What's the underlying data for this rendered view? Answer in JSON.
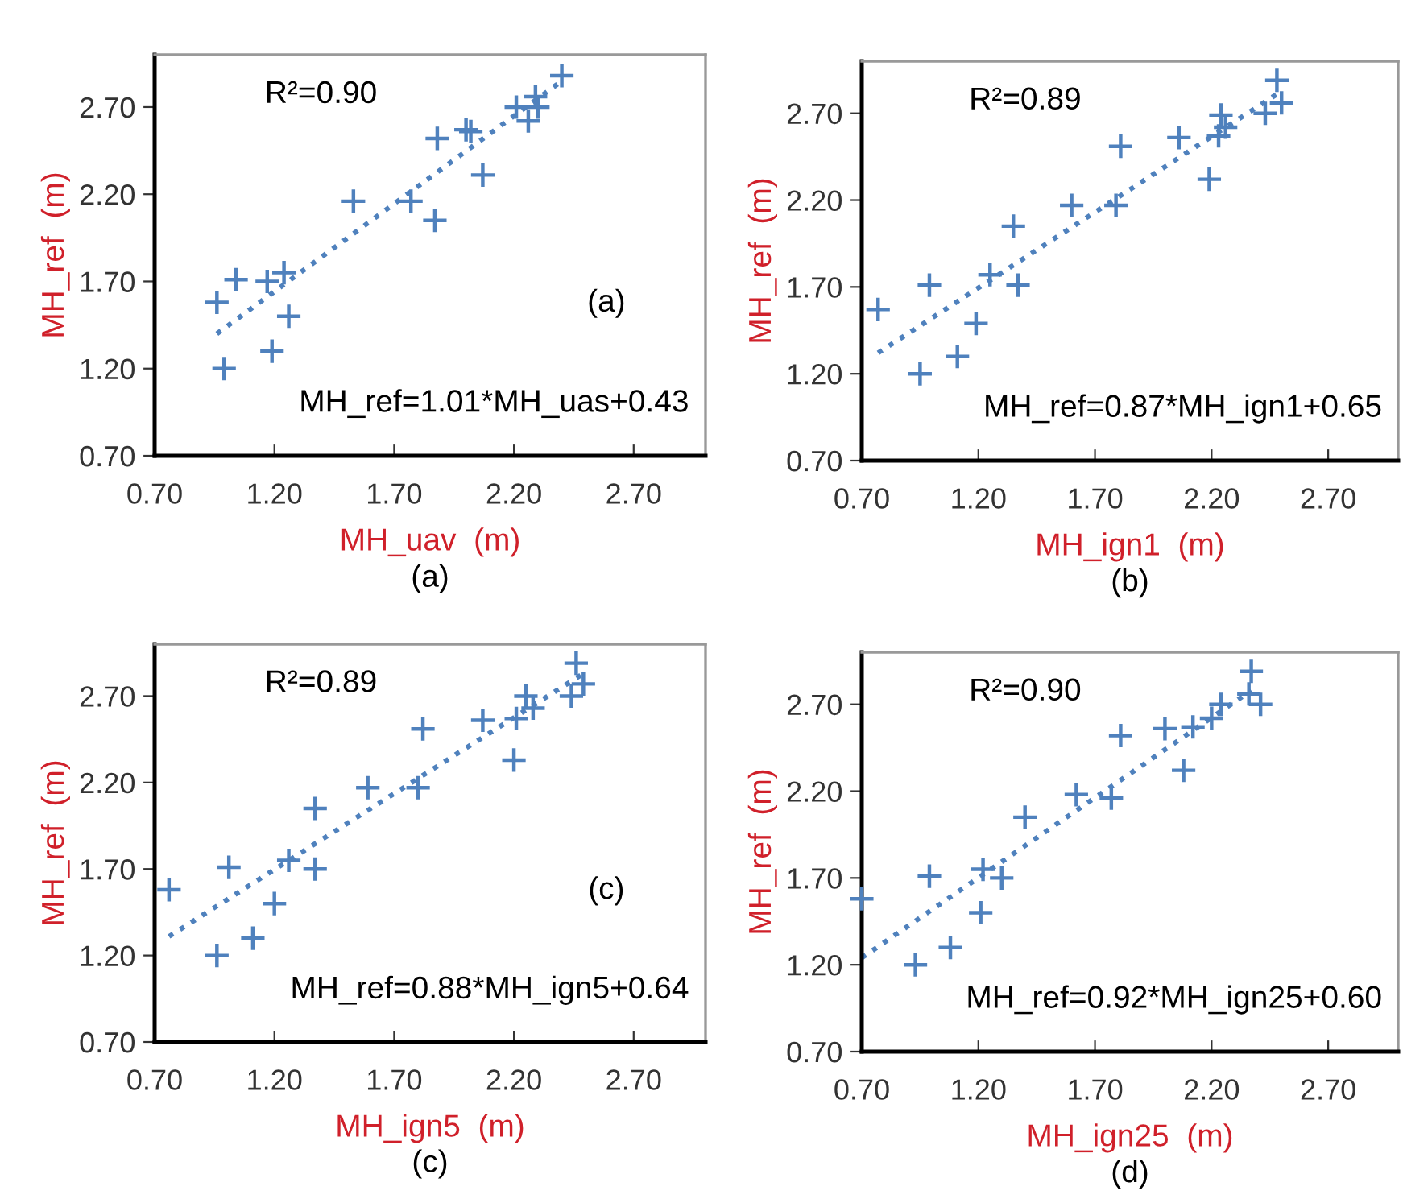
{
  "chart_data": [
    {
      "type": "scatter",
      "xlabel": "MH_uav  (m)",
      "ylabel": "MH_ref  (m)",
      "xlim": [
        0.7,
        3.0
      ],
      "ylim": [
        0.7,
        3.0
      ],
      "xticks": [
        {
          "value": 0.7,
          "label": "0.70"
        },
        {
          "value": 1.2,
          "label": "1.20"
        },
        {
          "value": 1.7,
          "label": "1.70"
        },
        {
          "value": 2.2,
          "label": "2.20"
        },
        {
          "value": 2.7,
          "label": "2.70"
        }
      ],
      "yticks": [
        {
          "value": 0.7,
          "label": "0.70"
        },
        {
          "value": 1.2,
          "label": "1.20"
        },
        {
          "value": 1.7,
          "label": "1.70"
        },
        {
          "value": 2.2,
          "label": "2.20"
        },
        {
          "value": 2.7,
          "label": "2.70"
        }
      ],
      "grid": false,
      "annotations": [
        "R²=0.90",
        "(a)",
        "MH_ref=1.01*MH_uas+0.43",
        "(a)"
      ],
      "series": [
        {
          "marker": "cross",
          "color": "#4f81bd",
          "x": [
            2.4,
            2.29,
            2.3,
            2.21,
            2.26,
            2.0,
            2.02,
            1.88,
            2.07,
            1.53,
            1.77,
            1.87,
            1.04,
            1.17,
            1.24,
            0.96,
            1.26,
            1.19,
            0.99
          ],
          "values": [
            2.88,
            2.76,
            2.7,
            2.7,
            2.62,
            2.57,
            2.56,
            2.52,
            2.31,
            2.16,
            2.16,
            2.05,
            1.71,
            1.7,
            1.75,
            1.58,
            1.5,
            1.3,
            1.2
          ]
        },
        {
          "type": "line",
          "color": "#4f81bd",
          "line_style": "dotted",
          "x": [
            0.96,
            2.4
          ],
          "values": [
            1.4,
            2.85
          ]
        }
      ]
    },
    {
      "type": "scatter",
      "xlabel": "MH_ign1  (m)",
      "ylabel": "MH_ref  (m)",
      "xlim": [
        0.7,
        3.0
      ],
      "ylim": [
        0.7,
        3.0
      ],
      "xticks": [
        {
          "value": 0.7,
          "label": "0.70"
        },
        {
          "value": 1.2,
          "label": "1.20"
        },
        {
          "value": 1.7,
          "label": "1.70"
        },
        {
          "value": 2.2,
          "label": "2.20"
        },
        {
          "value": 2.7,
          "label": "2.70"
        }
      ],
      "yticks": [
        {
          "value": 0.7,
          "label": "0.70"
        },
        {
          "value": 1.2,
          "label": "1.20"
        },
        {
          "value": 1.7,
          "label": "1.70"
        },
        {
          "value": 2.2,
          "label": "2.20"
        },
        {
          "value": 2.7,
          "label": "2.70"
        }
      ],
      "grid": false,
      "annotations": [
        "R²=0.89",
        "MH_ref=0.87*MH_ign1+0.65",
        "(b)"
      ],
      "series": [
        {
          "marker": "cross",
          "color": "#4f81bd",
          "x": [
            2.48,
            2.5,
            2.43,
            2.24,
            2.26,
            2.23,
            2.06,
            1.81,
            2.19,
            1.6,
            1.79,
            1.35,
            1.25,
            1.37,
            0.99,
            0.77,
            1.19,
            1.11,
            0.95
          ],
          "values": [
            2.89,
            2.76,
            2.7,
            2.69,
            2.62,
            2.57,
            2.56,
            2.51,
            2.32,
            2.17,
            2.17,
            2.05,
            1.77,
            1.71,
            1.71,
            1.57,
            1.49,
            1.3,
            1.2
          ]
        },
        {
          "type": "line",
          "color": "#4f81bd",
          "line_style": "dotted",
          "x": [
            0.77,
            2.48
          ],
          "values": [
            1.32,
            2.81
          ]
        }
      ]
    },
    {
      "type": "scatter",
      "xlabel": "MH_ign5  (m)",
      "ylabel": "MH_ref  (m)",
      "xlim": [
        0.7,
        3.0
      ],
      "ylim": [
        0.7,
        3.0
      ],
      "xticks": [
        {
          "value": 0.7,
          "label": "0.70"
        },
        {
          "value": 1.2,
          "label": "1.20"
        },
        {
          "value": 1.7,
          "label": "1.70"
        },
        {
          "value": 2.2,
          "label": "2.20"
        },
        {
          "value": 2.7,
          "label": "2.70"
        }
      ],
      "yticks": [
        {
          "value": 0.7,
          "label": "0.70"
        },
        {
          "value": 1.2,
          "label": "1.20"
        },
        {
          "value": 1.7,
          "label": "1.70"
        },
        {
          "value": 2.2,
          "label": "2.20"
        },
        {
          "value": 2.7,
          "label": "2.70"
        }
      ],
      "grid": false,
      "annotations": [
        "R²=0.89",
        "(c)",
        "MH_ref=0.88*MH_ign5+0.64",
        "(c)"
      ],
      "series": [
        {
          "marker": "cross",
          "color": "#4f81bd",
          "x": [
            2.46,
            2.49,
            2.44,
            2.25,
            2.28,
            2.21,
            2.07,
            1.82,
            2.2,
            1.59,
            1.8,
            1.37,
            1.26,
            1.37,
            1.01,
            0.76,
            1.2,
            1.11,
            0.96
          ],
          "values": [
            2.89,
            2.77,
            2.7,
            2.7,
            2.63,
            2.57,
            2.56,
            2.51,
            2.33,
            2.17,
            2.17,
            2.05,
            1.75,
            1.7,
            1.71,
            1.58,
            1.5,
            1.3,
            1.2
          ]
        },
        {
          "type": "line",
          "color": "#4f81bd",
          "line_style": "dotted",
          "x": [
            0.76,
            2.49
          ],
          "values": [
            1.31,
            2.83
          ]
        }
      ]
    },
    {
      "type": "scatter",
      "xlabel": "MH_ign25  (m)",
      "ylabel": "MH_ref  (m)",
      "xlim": [
        0.7,
        3.0
      ],
      "ylim": [
        0.7,
        3.0
      ],
      "xticks": [
        {
          "value": 0.7,
          "label": "0.70"
        },
        {
          "value": 1.2,
          "label": "1.20"
        },
        {
          "value": 1.7,
          "label": "1.70"
        },
        {
          "value": 2.2,
          "label": "2.20"
        },
        {
          "value": 2.7,
          "label": "2.70"
        }
      ],
      "yticks": [
        {
          "value": 0.7,
          "label": "0.70"
        },
        {
          "value": 1.2,
          "label": "1.20"
        },
        {
          "value": 1.7,
          "label": "1.70"
        },
        {
          "value": 2.2,
          "label": "2.20"
        },
        {
          "value": 2.7,
          "label": "2.70"
        }
      ],
      "grid": false,
      "annotations": [
        "R²=0.90",
        "MH_ref=0.92*MH_ign25+0.60",
        "(d)"
      ],
      "series": [
        {
          "marker": "cross",
          "color": "#4f81bd",
          "x": [
            2.37,
            2.41,
            2.36,
            2.24,
            2.2,
            2.12,
            2.0,
            1.81,
            2.08,
            1.62,
            1.77,
            1.4,
            1.22,
            1.3,
            0.99,
            0.7,
            1.21,
            1.08,
            0.93
          ],
          "values": [
            2.89,
            2.7,
            2.76,
            2.7,
            2.62,
            2.57,
            2.56,
            2.52,
            2.32,
            2.18,
            2.16,
            2.05,
            1.75,
            1.7,
            1.71,
            1.58,
            1.5,
            1.3,
            1.2
          ]
        },
        {
          "type": "line",
          "color": "#4f81bd",
          "line_style": "dotted",
          "x": [
            0.7,
            2.37
          ],
          "values": [
            1.24,
            2.78
          ]
        }
      ]
    }
  ]
}
